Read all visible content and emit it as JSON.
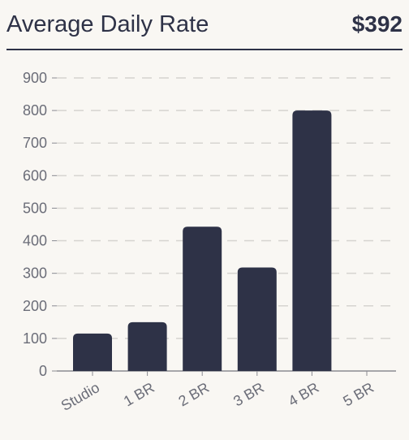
{
  "header": {
    "title": "Average Daily Rate",
    "value": "$392"
  },
  "colors": {
    "bar": "#2e3247",
    "grid": "#d6d4d0",
    "axis": "#8a8b92",
    "background": "#f9f7f3"
  },
  "chart_data": {
    "type": "bar",
    "title": "",
    "xlabel": "",
    "ylabel": "",
    "categories": [
      "Studio",
      "1 BR",
      "2 BR",
      "3 BR",
      "4 BR",
      "5 BR"
    ],
    "values": [
      115,
      150,
      443,
      318,
      800,
      0
    ],
    "ylim": [
      0,
      900
    ],
    "yticks": [
      0,
      100,
      200,
      300,
      400,
      500,
      600,
      700,
      800,
      900
    ],
    "grid": true,
    "legend": "none"
  }
}
